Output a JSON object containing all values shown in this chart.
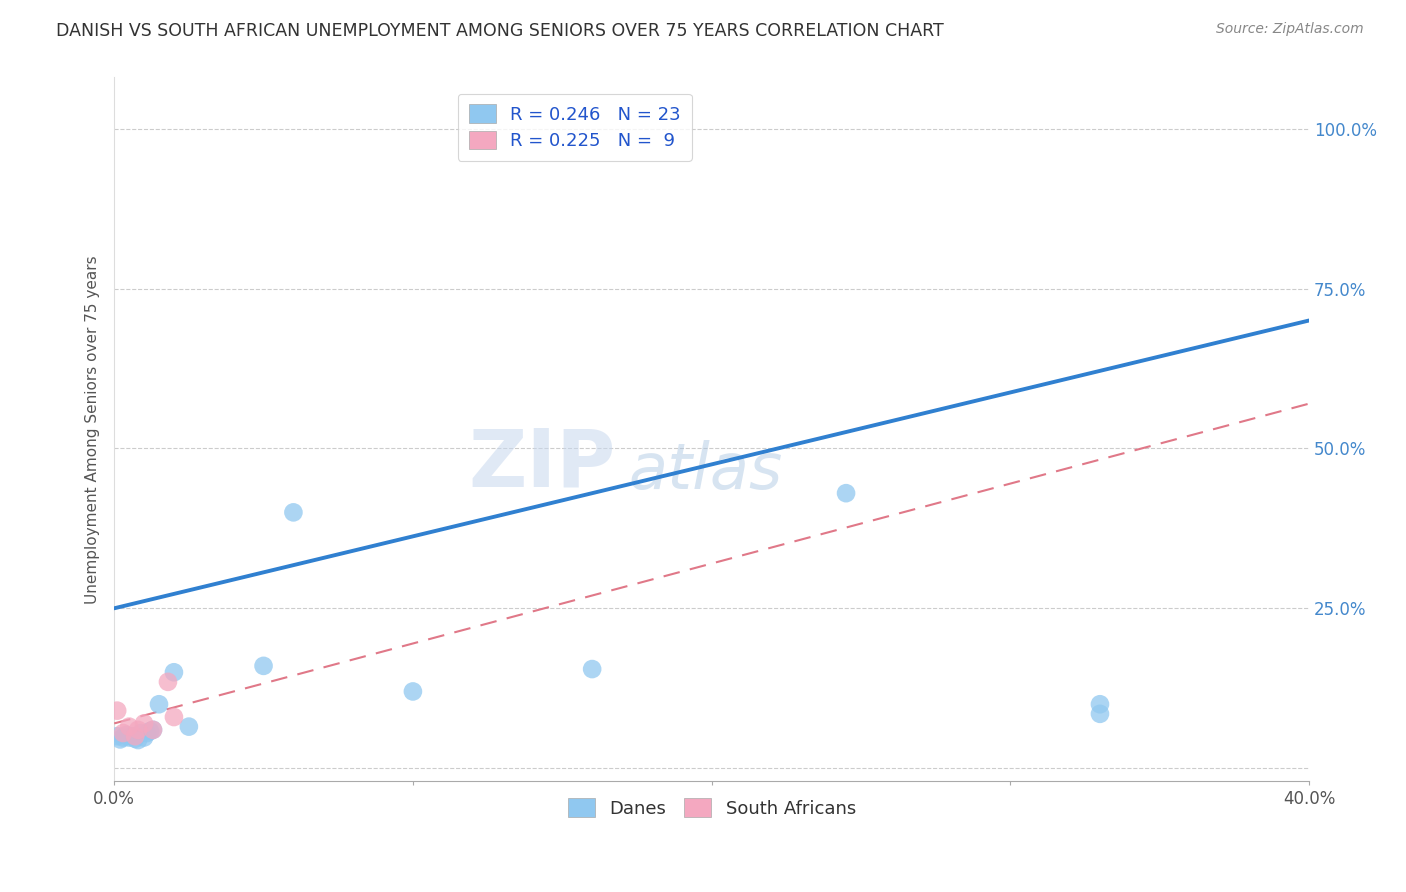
{
  "title": "DANISH VS SOUTH AFRICAN UNEMPLOYMENT AMONG SENIORS OVER 75 YEARS CORRELATION CHART",
  "source": "Source: ZipAtlas.com",
  "ylabel": "Unemployment Among Seniors over 75 years",
  "xlim": [
    0.0,
    0.4
  ],
  "ylim": [
    -0.02,
    1.08
  ],
  "xticks": [
    0.0,
    0.1,
    0.2,
    0.3,
    0.4
  ],
  "xticklabels": [
    "0.0%",
    "",
    "",
    "",
    "40.0%"
  ],
  "yticks": [
    0.0,
    0.25,
    0.5,
    0.75,
    1.0
  ],
  "yticklabels": [
    "",
    "25.0%",
    "50.0%",
    "75.0%",
    "100.0%"
  ],
  "dane_R": 0.246,
  "dane_N": 23,
  "sa_R": 0.225,
  "sa_N": 9,
  "dane_color": "#90C8F0",
  "sa_color": "#F4A8C0",
  "dane_line_color": "#3080D0",
  "sa_line_color": "#E07888",
  "background_color": "#ffffff",
  "dane_line_x0": 0.0,
  "dane_line_y0": 0.25,
  "dane_line_x1": 0.4,
  "dane_line_y1": 0.7,
  "sa_line_x0": 0.0,
  "sa_line_y0": 0.07,
  "sa_line_x1": 0.4,
  "sa_line_y1": 0.57,
  "dane_x": [
    0.001,
    0.002,
    0.003,
    0.004,
    0.005,
    0.006,
    0.007,
    0.008,
    0.009,
    0.01,
    0.011,
    0.012,
    0.013,
    0.015,
    0.02,
    0.025,
    0.05,
    0.06,
    0.1,
    0.16,
    0.245,
    0.33,
    0.33
  ],
  "dane_y": [
    0.05,
    0.045,
    0.048,
    0.052,
    0.048,
    0.05,
    0.046,
    0.044,
    0.055,
    0.048,
    0.055,
    0.058,
    0.06,
    0.1,
    0.15,
    0.065,
    0.16,
    0.4,
    0.12,
    0.155,
    0.43,
    0.085,
    0.1
  ],
  "sa_x": [
    0.001,
    0.003,
    0.005,
    0.007,
    0.008,
    0.01,
    0.013,
    0.018,
    0.02
  ],
  "sa_y": [
    0.09,
    0.055,
    0.065,
    0.05,
    0.06,
    0.07,
    0.06,
    0.135,
    0.08
  ]
}
